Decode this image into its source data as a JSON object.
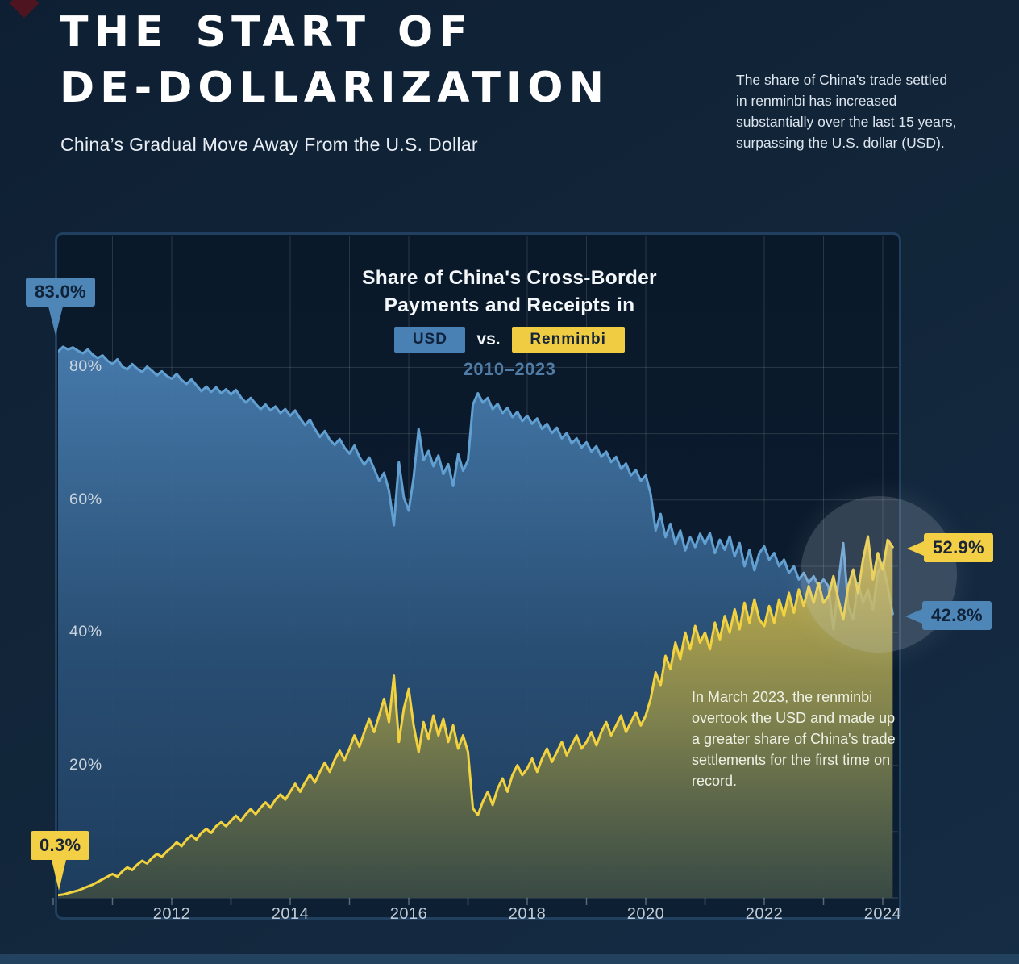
{
  "header": {
    "title_line1": "THE START OF",
    "title_line2": "DE-DOLLARIZATION",
    "subtitle": "China’s Gradual Move Away From the U.S. Dollar",
    "intro": "The share of China's trade settled in renminbi has increased substantially over the last 15 years, surpassing the U.S. dollar (USD)."
  },
  "chart": {
    "title_line1": "Share of China's Cross-Border",
    "title_line2": "Payments and Receipts in",
    "legend": {
      "usd_label": "USD",
      "vs_label": "vs.",
      "rmb_label": "Renminbi"
    },
    "callouts": {
      "usd_start": "83.0%",
      "rmb_start": "0.3%",
      "rmb_end": "52.9%",
      "usd_end": "42.8%"
    },
    "colors": {
      "usd_fill_top": "#477cae",
      "usd_fill_bottom": "#1f3f60",
      "usd_line": "#63a0d2",
      "rmb_fill_top": "#f0cb45",
      "rmb_fill_bottom": "#4f5530",
      "rmb_line": "#f2d23f",
      "grid": "rgba(255,255,255,0.13)",
      "tick": "rgba(255,255,255,0.32)",
      "panel_border": "#21405f",
      "accent_blue": "#4a81b4",
      "accent_yellow": "#f0cc43"
    }
  },
  "chart_data": {
    "type": "area",
    "title": "Share of China's Cross-Border Payments and Receipts in USD vs. Renminbi",
    "subtitle_period": "2010–2023",
    "x_unit": "monthly",
    "x_start_year": 2010,
    "x_end": "2024-03",
    "xlim": [
      2010,
      2024.4
    ],
    "ylim": [
      0,
      88
    ],
    "grid": true,
    "legend_position": "top",
    "y_ticks": [
      {
        "value": 80,
        "label": "80%"
      },
      {
        "value": 60,
        "label": "60%"
      },
      {
        "value": 40,
        "label": "40%"
      },
      {
        "value": 20,
        "label": "20%"
      }
    ],
    "x_ticks": [
      {
        "value": 2012,
        "label": "2012"
      },
      {
        "value": 2014,
        "label": "2014"
      },
      {
        "value": 2016,
        "label": "2016"
      },
      {
        "value": 2018,
        "label": "2018"
      },
      {
        "value": 2020,
        "label": "2020"
      },
      {
        "value": 2022,
        "label": "2022"
      },
      {
        "value": 2024,
        "label": "2024"
      }
    ],
    "annotations": [
      {
        "text": "In March 2023, the renminbi overtook the USD and made up a greater share of China's trade settlements for the first time on record.",
        "x": "2023-03"
      }
    ],
    "series": [
      {
        "name": "USD",
        "color": "#4a81b4",
        "start_value": 83.0,
        "end_value": 42.8,
        "values": [
          83.0,
          82.4,
          83.1,
          82.7,
          83.0,
          82.5,
          82.1,
          82.7,
          81.9,
          81.4,
          81.8,
          81.0,
          80.5,
          81.2,
          80.1,
          79.7,
          80.5,
          79.8,
          79.3,
          80.1,
          79.5,
          78.8,
          79.4,
          78.7,
          78.3,
          79.0,
          78.1,
          77.5,
          78.2,
          77.3,
          76.4,
          77.1,
          76.3,
          77.0,
          76.1,
          76.7,
          75.9,
          76.6,
          75.5,
          74.7,
          75.4,
          74.5,
          73.7,
          74.4,
          73.5,
          74.1,
          73.1,
          73.7,
          72.7,
          73.5,
          72.3,
          71.3,
          72.1,
          70.7,
          69.5,
          70.4,
          69.1,
          68.3,
          69.2,
          67.9,
          67.0,
          68.2,
          66.5,
          65.3,
          66.4,
          64.7,
          62.9,
          64.1,
          61.4,
          56.2,
          65.7,
          60.4,
          58.4,
          63.4,
          70.7,
          66.0,
          67.4,
          65.1,
          66.7,
          63.9,
          65.4,
          62.1,
          66.9,
          64.4,
          66.0,
          74.4,
          76.1,
          74.7,
          75.4,
          73.7,
          74.5,
          73.1,
          73.9,
          72.5,
          73.3,
          71.9,
          72.7,
          71.5,
          72.3,
          70.7,
          71.5,
          70.1,
          70.9,
          69.3,
          70.1,
          68.5,
          69.3,
          67.9,
          68.7,
          67.3,
          68.1,
          66.5,
          67.3,
          65.7,
          66.5,
          64.7,
          65.5,
          63.7,
          64.5,
          62.9,
          63.7,
          60.9,
          55.4,
          57.9,
          54.4,
          56.4,
          53.4,
          55.4,
          52.4,
          54.4,
          52.9,
          54.9,
          53.4,
          55.0,
          52.0,
          54.0,
          52.5,
          54.5,
          51.5,
          53.5,
          50.0,
          52.5,
          49.4,
          52.0,
          53.0,
          51.0,
          52.0,
          50.0,
          51.0,
          49.0,
          50.0,
          48.0,
          49.0,
          47.5,
          48.5,
          47.0,
          48.0,
          47.0,
          40.5,
          47.5,
          53.5,
          44.0,
          42.0,
          47.5,
          44.5,
          46.5,
          43.5,
          49.0,
          50.5,
          47.0,
          42.8
        ]
      },
      {
        "name": "Renminbi",
        "color": "#f0cc43",
        "start_value": 0.3,
        "end_value": 52.9,
        "values": [
          0.3,
          0.4,
          0.5,
          0.7,
          0.9,
          1.1,
          1.4,
          1.7,
          2.0,
          2.4,
          2.8,
          3.2,
          3.6,
          3.2,
          4.0,
          4.6,
          4.2,
          5.0,
          5.6,
          5.2,
          6.0,
          6.6,
          6.2,
          7.0,
          7.6,
          8.4,
          7.8,
          8.8,
          9.4,
          8.8,
          9.8,
          10.4,
          9.8,
          10.8,
          11.4,
          10.8,
          11.6,
          12.4,
          11.6,
          12.6,
          13.4,
          12.6,
          13.6,
          14.4,
          13.6,
          14.8,
          15.6,
          14.8,
          16.0,
          17.2,
          16.0,
          17.4,
          18.6,
          17.4,
          19.0,
          20.4,
          19.0,
          20.8,
          22.2,
          20.8,
          22.5,
          24.5,
          22.8,
          25.0,
          27.0,
          25.0,
          27.5,
          30.0,
          26.5,
          33.5,
          23.5,
          28.5,
          31.5,
          26.0,
          22.0,
          26.5,
          24.0,
          27.5,
          24.5,
          27.0,
          23.5,
          26.0,
          22.5,
          24.5,
          22.0,
          13.5,
          12.5,
          14.5,
          16.0,
          14.0,
          16.5,
          18.0,
          16.0,
          18.5,
          20.0,
          18.5,
          19.5,
          21.0,
          19.0,
          21.0,
          22.5,
          20.5,
          22.0,
          23.5,
          21.5,
          23.0,
          24.5,
          22.5,
          23.5,
          25.0,
          23.0,
          25.0,
          26.5,
          24.5,
          26.0,
          27.5,
          25.0,
          26.5,
          28.0,
          26.0,
          27.5,
          30.0,
          34.0,
          32.0,
          36.5,
          34.5,
          38.5,
          36.0,
          40.0,
          37.5,
          41.0,
          38.5,
          40.0,
          37.5,
          41.5,
          39.0,
          42.5,
          40.0,
          43.5,
          40.5,
          44.5,
          41.5,
          45.0,
          42.0,
          41.0,
          44.0,
          41.5,
          45.0,
          42.5,
          46.0,
          43.0,
          46.5,
          44.0,
          47.0,
          44.5,
          47.5,
          44.5,
          45.5,
          48.5,
          45.0,
          42.0,
          47.0,
          49.5,
          46.0,
          51.0,
          54.5,
          48.0,
          52.0,
          49.5,
          54.0,
          52.9
        ]
      }
    ]
  }
}
